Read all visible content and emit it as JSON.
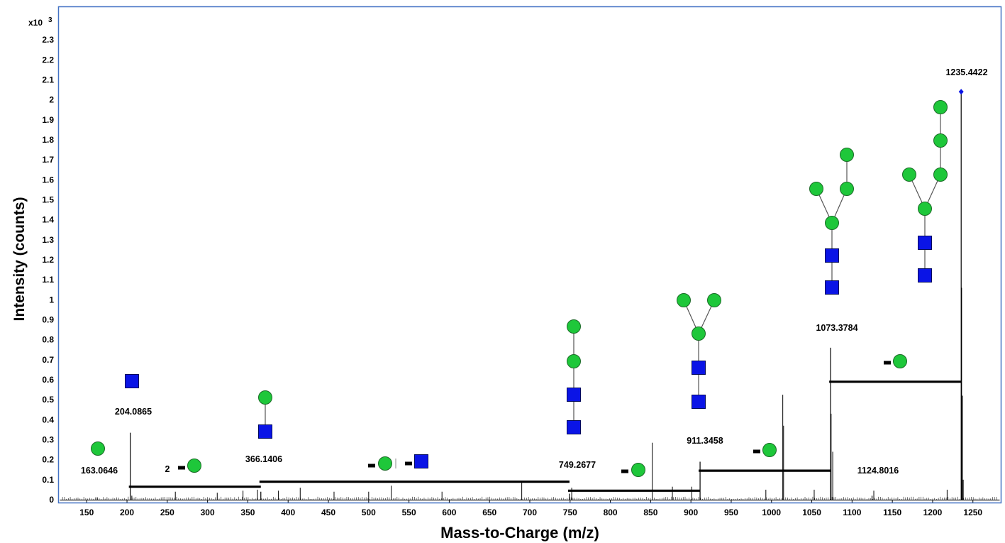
{
  "chart_data": {
    "type": "bar",
    "title": "",
    "xlabel": "Mass-to-Charge (m/z)",
    "ylabel": "Intensity (counts)",
    "y_multiplier_label": "x10",
    "y_multiplier_exponent": "3",
    "xlim": [
      115,
      1285
    ],
    "ylim": [
      0,
      2.4
    ],
    "x_ticks": [
      "150",
      "200",
      "250",
      "300",
      "350",
      "400",
      "450",
      "500",
      "550",
      "600",
      "650",
      "700",
      "750",
      "800",
      "850",
      "900",
      "950",
      "1000",
      "1050",
      "1100",
      "1150",
      "1200",
      "1250"
    ],
    "y_ticks": [
      "0",
      "0.1",
      "0.2",
      "0.3",
      "0.4",
      "0.5",
      "0.6",
      "0.7",
      "0.8",
      "0.9",
      "1",
      "1.1",
      "1.2",
      "1.3",
      "1.4",
      "1.5",
      "1.6",
      "1.7",
      "1.8",
      "1.9",
      "2",
      "2.1",
      "2.2",
      "2.3"
    ],
    "grid": false,
    "legend": "none",
    "colors": {
      "spectrum": "#000000",
      "frame": "#4472c4",
      "glc": "#1ec73a",
      "glcnac": "#0a14e6",
      "precursor": "#0a14e6"
    },
    "peaks": [
      {
        "mz": 163.0646,
        "intensity": 0.012,
        "label": "163.0646"
      },
      {
        "mz": 204.0865,
        "intensity": 0.335,
        "label": "204.0865"
      },
      {
        "mz": 366.1406,
        "intensity": 0.04,
        "label": "366.1406"
      },
      {
        "mz": 749.2677,
        "intensity": 0.03,
        "label": "749.2677"
      },
      {
        "mz": 911.3458,
        "intensity": 0.19,
        "label": "911.3458"
      },
      {
        "mz": 1073.3784,
        "intensity": 0.76,
        "label": "1073.3784"
      },
      {
        "mz": 1124.8016,
        "intensity": 0.02,
        "label": "1124.8016"
      },
      {
        "mz": 1235.4422,
        "intensity": 2.03,
        "label": "1235.4422"
      }
    ],
    "minor_peaks": [
      {
        "mz": 206,
        "intensity": 0.02
      },
      {
        "mz": 260,
        "intensity": 0.04
      },
      {
        "mz": 312,
        "intensity": 0.035
      },
      {
        "mz": 344,
        "intensity": 0.045
      },
      {
        "mz": 362,
        "intensity": 0.05
      },
      {
        "mz": 388,
        "intensity": 0.045
      },
      {
        "mz": 415,
        "intensity": 0.06
      },
      {
        "mz": 457,
        "intensity": 0.04
      },
      {
        "mz": 500,
        "intensity": 0.04
      },
      {
        "mz": 528,
        "intensity": 0.07
      },
      {
        "mz": 591,
        "intensity": 0.04
      },
      {
        "mz": 690,
        "intensity": 0.085
      },
      {
        "mz": 752,
        "intensity": 0.06
      },
      {
        "mz": 852,
        "intensity": 0.285
      },
      {
        "mz": 877,
        "intensity": 0.065
      },
      {
        "mz": 901,
        "intensity": 0.065
      },
      {
        "mz": 993,
        "intensity": 0.05
      },
      {
        "mz": 1014,
        "intensity": 0.525
      },
      {
        "mz": 1015,
        "intensity": 0.37
      },
      {
        "mz": 1053,
        "intensity": 0.05
      },
      {
        "mz": 1074,
        "intensity": 0.43
      },
      {
        "mz": 1076,
        "intensity": 0.24
      },
      {
        "mz": 1127,
        "intensity": 0.045
      },
      {
        "mz": 1218,
        "intensity": 0.05
      },
      {
        "mz": 1236,
        "intensity": 1.06
      },
      {
        "mz": 1237,
        "intensity": 0.52
      },
      {
        "mz": 1238,
        "intensity": 0.1
      }
    ],
    "mass_difference_bars": [
      {
        "from": 204.0865,
        "to": 366.1406,
        "y": 0.065,
        "prefix": "2",
        "residues": [
          "hex"
        ]
      },
      {
        "from": 366.1406,
        "to": 749.2677,
        "y": 0.09,
        "prefix": "",
        "residues": [
          "hex",
          "hexnac"
        ]
      },
      {
        "from": 749.2677,
        "to": 911.3458,
        "y": 0.045,
        "prefix": "",
        "residues": [
          "hex"
        ]
      },
      {
        "from": 911.3458,
        "to": 1073.3784,
        "y": 0.145,
        "prefix": "",
        "residues": [
          "hex"
        ]
      },
      {
        "from": 1073.3784,
        "to": 1235.4422,
        "y": 0.59,
        "prefix": "",
        "residues": [
          "hex"
        ]
      }
    ],
    "glycan_structures": [
      {
        "peak": "163.0646",
        "composition": "Hex"
      },
      {
        "peak": "204.0865",
        "composition": "HexNAc"
      },
      {
        "peak": "366.1406",
        "composition": "HexNAc-Hex"
      },
      {
        "peak": "749.2677",
        "composition": "HexNAc2-Hex2"
      },
      {
        "peak": "911.3458",
        "composition": "HexNAc2-Hex3 (branched)"
      },
      {
        "peak": "1073.3784",
        "composition": "HexNAc2-Hex4 (branched)"
      },
      {
        "peak": "1235.4422",
        "composition": "HexNAc2-Hex5 (branched)"
      }
    ]
  }
}
